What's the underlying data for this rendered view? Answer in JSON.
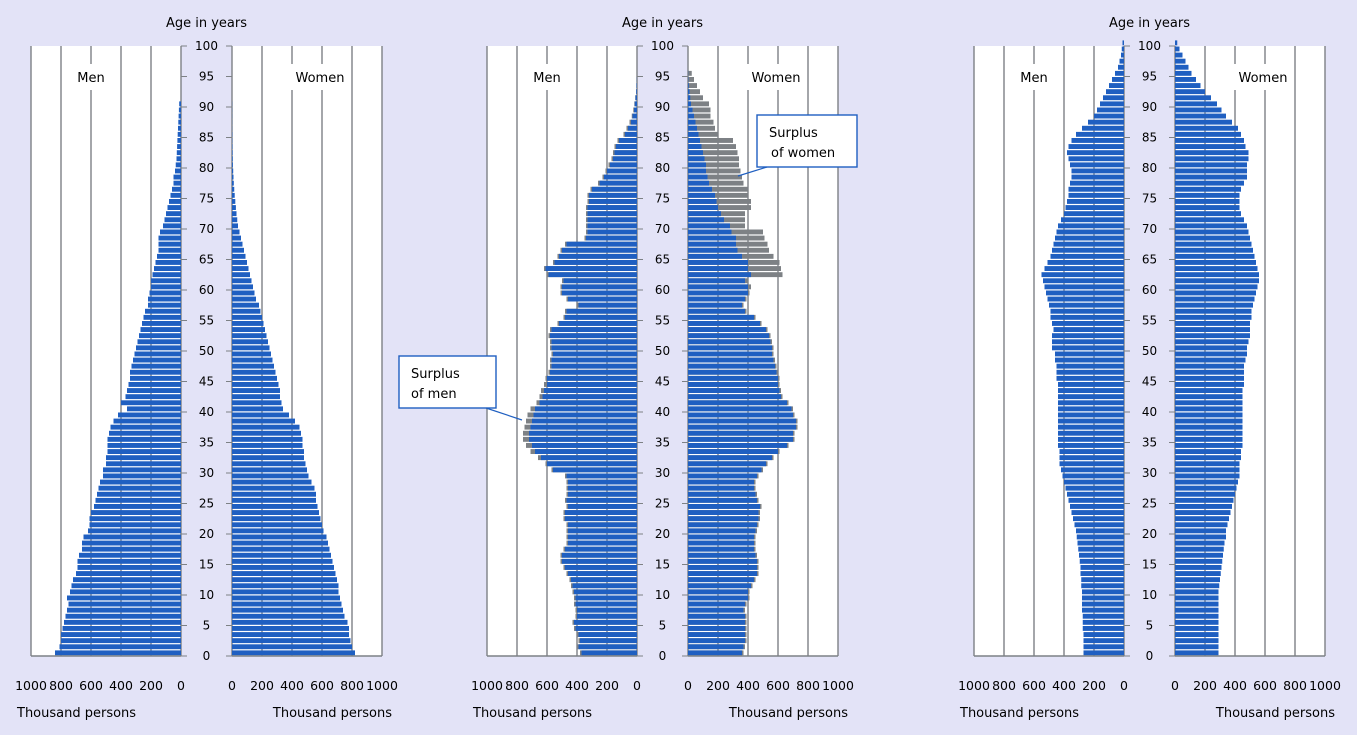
{
  "colors": {
    "background": "#e3e3f7",
    "plot_background": "#ffffff",
    "bar": "#1f5fc1",
    "bar_edge": "#0f3f8f",
    "surplus": "#7d8185",
    "grid": "#7d8185"
  },
  "labels": {
    "age_axis_title": "Age in years",
    "men": "Men",
    "women": "Women",
    "x_axis_title": "Thousand persons",
    "surplus_women": [
      "Surplus",
      "of women"
    ],
    "surplus_men": [
      "Surplus",
      "of men"
    ]
  },
  "chart_data": [
    {
      "type": "bar",
      "orientation": "horizontal",
      "layout": "population-pyramid",
      "ylabel": "Age in years",
      "xlabel": "Thousand persons",
      "ylim": [
        0,
        100
      ],
      "xlim": [
        0,
        1000
      ],
      "age_ticks": [
        0,
        5,
        10,
        15,
        20,
        25,
        30,
        35,
        40,
        45,
        50,
        55,
        60,
        65,
        70,
        75,
        80,
        85,
        90,
        95,
        100
      ],
      "x_ticks_men": [
        "1000",
        "800",
        "600",
        "400",
        "200",
        "0"
      ],
      "x_ticks_women": [
        "0",
        "200",
        "400",
        "600",
        "800",
        "1000"
      ],
      "grid": true,
      "series": [
        {
          "name": "Men",
          "values": [
            840,
            810,
            800,
            800,
            790,
            780,
            770,
            760,
            750,
            760,
            740,
            730,
            720,
            700,
            690,
            690,
            680,
            660,
            660,
            650,
            620,
            610,
            610,
            600,
            580,
            570,
            560,
            550,
            540,
            520,
            520,
            500,
            500,
            490,
            490,
            490,
            480,
            470,
            450,
            420,
            360,
            400,
            370,
            360,
            350,
            340,
            340,
            330,
            320,
            310,
            300,
            290,
            280,
            270,
            260,
            250,
            240,
            220,
            220,
            210,
            200,
            200,
            190,
            180,
            170,
            160,
            150,
            150,
            150,
            140,
            120,
            110,
            100,
            90,
            80,
            70,
            60,
            50,
            50,
            40,
            35,
            30,
            28,
            26,
            24,
            22,
            20,
            18,
            16,
            14,
            12
          ]
        },
        {
          "name": "Women",
          "values": [
            820,
            800,
            790,
            780,
            780,
            770,
            750,
            740,
            730,
            720,
            710,
            710,
            700,
            690,
            680,
            670,
            660,
            650,
            640,
            630,
            610,
            600,
            590,
            580,
            570,
            560,
            560,
            550,
            530,
            510,
            500,
            490,
            480,
            480,
            470,
            470,
            460,
            450,
            420,
            380,
            340,
            330,
            320,
            320,
            310,
            300,
            290,
            280,
            270,
            260,
            250,
            240,
            230,
            220,
            210,
            200,
            190,
            180,
            160,
            150,
            140,
            130,
            120,
            110,
            100,
            90,
            80,
            70,
            60,
            50,
            40,
            35,
            30,
            26,
            22,
            18,
            15,
            12,
            10,
            8,
            6,
            5,
            4,
            3,
            2,
            2,
            1,
            1,
            1,
            1,
            1
          ]
        }
      ]
    },
    {
      "type": "bar",
      "orientation": "horizontal",
      "layout": "population-pyramid",
      "ylabel": "Age in years",
      "xlabel": "Thousand persons",
      "ylim": [
        0,
        100
      ],
      "xlim": [
        0,
        1000
      ],
      "age_ticks": [
        0,
        5,
        10,
        15,
        20,
        25,
        30,
        35,
        40,
        45,
        50,
        55,
        60,
        65,
        70,
        75,
        80,
        85,
        90,
        95,
        100
      ],
      "x_ticks_men": [
        "1000",
        "800",
        "600",
        "400",
        "200",
        "0"
      ],
      "x_ticks_women": [
        "0",
        "200",
        "400",
        "600",
        "800",
        "1000"
      ],
      "grid": true,
      "annotations": [
        {
          "text": "Surplus of women",
          "side": "women",
          "age": 80
        },
        {
          "text": "Surplus of men",
          "side": "men",
          "age": 40
        }
      ],
      "series": [
        {
          "name": "Men",
          "values": [
            370,
            390,
            380,
            390,
            410,
            420,
            400,
            400,
            410,
            410,
            420,
            430,
            440,
            460,
            480,
            500,
            500,
            480,
            460,
            460,
            460,
            460,
            480,
            480,
            460,
            470,
            460,
            460,
            460,
            470,
            560,
            600,
            640,
            680,
            700,
            720,
            720,
            710,
            700,
            690,
            680,
            650,
            630,
            620,
            600,
            600,
            580,
            570,
            570,
            560,
            570,
            570,
            580,
            570,
            520,
            480,
            470,
            390,
            460,
            500,
            500,
            490,
            590,
            610,
            550,
            520,
            500,
            470,
            340,
            330,
            330,
            330,
            330,
            330,
            320,
            320,
            300,
            250,
            220,
            200,
            180,
            160,
            150,
            140,
            120,
            80,
            60,
            40,
            30,
            20,
            15,
            10,
            5,
            3,
            1,
            0
          ]
        },
        {
          "name": "Women",
          "values": [
            360,
            370,
            380,
            380,
            380,
            380,
            380,
            370,
            380,
            400,
            400,
            420,
            440,
            460,
            460,
            460,
            450,
            440,
            440,
            440,
            450,
            460,
            470,
            470,
            480,
            460,
            450,
            440,
            440,
            460,
            490,
            520,
            560,
            600,
            660,
            700,
            700,
            720,
            720,
            700,
            690,
            660,
            620,
            610,
            600,
            600,
            590,
            580,
            570,
            560,
            560,
            550,
            540,
            520,
            480,
            440,
            380,
            360,
            380,
            400,
            400,
            380,
            420,
            400,
            400,
            360,
            330,
            320,
            320,
            290,
            280,
            240,
            220,
            200,
            190,
            180,
            160,
            140,
            130,
            120,
            120,
            110,
            100,
            90,
            80,
            70,
            60,
            50,
            40,
            30,
            20,
            15,
            10,
            5,
            2,
            1
          ]
        },
        {
          "name": "Surplus of men",
          "values": [
            380,
            400,
            390,
            400,
            420,
            430,
            410,
            410,
            420,
            420,
            430,
            440,
            450,
            470,
            490,
            510,
            510,
            490,
            470,
            470,
            470,
            470,
            490,
            490,
            470,
            480,
            470,
            470,
            470,
            480,
            570,
            610,
            660,
            710,
            740,
            760,
            760,
            750,
            740,
            730,
            710,
            670,
            650,
            640,
            620,
            610,
            590,
            580,
            580,
            570,
            580,
            580,
            590,
            580,
            530,
            490,
            480,
            400,
            470,
            510,
            510,
            500,
            600,
            620,
            560,
            530,
            510,
            480,
            350,
            340,
            340,
            340,
            340,
            340,
            330,
            330,
            310,
            260,
            230,
            210,
            190,
            170,
            160,
            150,
            130,
            90,
            70,
            50,
            35,
            25,
            18,
            12,
            6,
            4,
            2,
            1
          ]
        },
        {
          "name": "Surplus of women",
          "values": [
            370,
            380,
            390,
            390,
            390,
            390,
            390,
            380,
            390,
            410,
            410,
            430,
            450,
            470,
            470,
            470,
            460,
            450,
            450,
            450,
            460,
            470,
            480,
            480,
            490,
            470,
            460,
            450,
            450,
            470,
            500,
            530,
            570,
            610,
            670,
            710,
            710,
            730,
            730,
            710,
            700,
            670,
            630,
            620,
            610,
            610,
            600,
            590,
            580,
            570,
            570,
            560,
            550,
            530,
            490,
            450,
            390,
            370,
            390,
            410,
            420,
            400,
            630,
            620,
            610,
            570,
            540,
            530,
            510,
            500,
            380,
            380,
            380,
            420,
            420,
            400,
            400,
            370,
            360,
            350,
            340,
            340,
            330,
            320,
            300,
            200,
            180,
            170,
            150,
            150,
            140,
            100,
            80,
            60,
            40,
            25
          ]
        }
      ]
    },
    {
      "type": "bar",
      "orientation": "horizontal",
      "layout": "population-pyramid",
      "ylabel": "Age in years",
      "xlabel": "Thousand persons",
      "ylim": [
        0,
        100
      ],
      "xlim": [
        0,
        1000
      ],
      "age_ticks": [
        0,
        5,
        10,
        15,
        20,
        25,
        30,
        35,
        40,
        45,
        50,
        55,
        60,
        65,
        70,
        75,
        80,
        85,
        90,
        95,
        100
      ],
      "x_ticks_men": [
        "1000",
        "800",
        "600",
        "400",
        "200",
        "0"
      ],
      "x_ticks_women": [
        "0",
        "200",
        "400",
        "600",
        "800",
        "1000"
      ],
      "grid": true,
      "series": [
        {
          "name": "Men",
          "values": [
            270,
            270,
            270,
            270,
            275,
            275,
            275,
            280,
            280,
            280,
            280,
            285,
            285,
            290,
            290,
            295,
            300,
            305,
            310,
            315,
            320,
            330,
            340,
            350,
            360,
            370,
            380,
            390,
            400,
            410,
            420,
            430,
            430,
            430,
            440,
            440,
            440,
            440,
            440,
            440,
            440,
            440,
            440,
            440,
            440,
            450,
            450,
            450,
            460,
            460,
            480,
            480,
            480,
            470,
            480,
            490,
            490,
            500,
            510,
            520,
            530,
            540,
            550,
            530,
            510,
            490,
            480,
            470,
            460,
            450,
            440,
            420,
            400,
            390,
            380,
            370,
            370,
            360,
            350,
            350,
            360,
            370,
            380,
            370,
            350,
            320,
            280,
            240,
            200,
            180,
            160,
            140,
            120,
            100,
            80,
            60,
            40,
            30,
            20,
            15,
            10
          ]
        },
        {
          "name": "Women",
          "values": [
            290,
            290,
            290,
            290,
            290,
            290,
            290,
            290,
            290,
            290,
            290,
            295,
            300,
            305,
            310,
            315,
            320,
            325,
            330,
            340,
            340,
            350,
            360,
            370,
            380,
            390,
            400,
            410,
            420,
            430,
            430,
            430,
            440,
            440,
            450,
            450,
            450,
            450,
            450,
            450,
            450,
            450,
            450,
            450,
            460,
            460,
            460,
            460,
            470,
            480,
            480,
            490,
            500,
            500,
            500,
            510,
            510,
            520,
            530,
            540,
            550,
            560,
            560,
            550,
            540,
            530,
            520,
            510,
            500,
            490,
            480,
            460,
            440,
            430,
            430,
            430,
            440,
            460,
            480,
            480,
            480,
            490,
            490,
            470,
            460,
            440,
            420,
            380,
            340,
            310,
            280,
            240,
            200,
            170,
            140,
            110,
            90,
            70,
            50,
            30,
            15
          ]
        }
      ]
    }
  ]
}
